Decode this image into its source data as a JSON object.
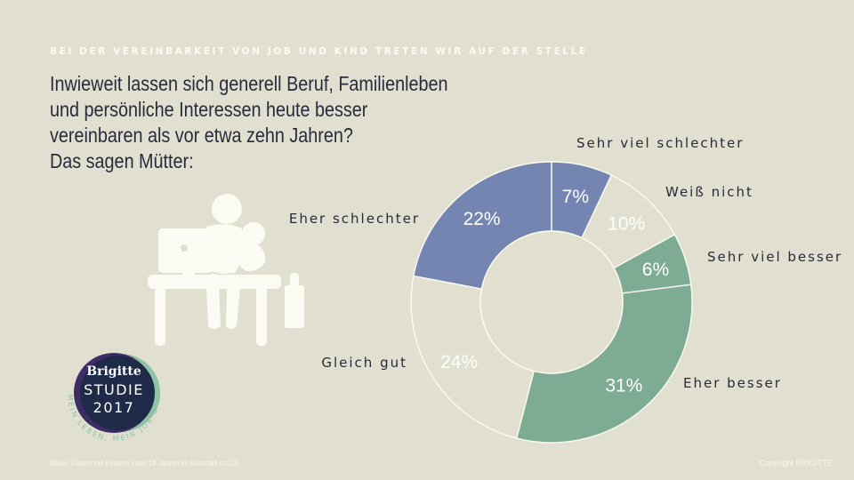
{
  "header": {
    "kicker": "BEI DER VEREINBARKEIT VON JOB UND KIND TRETEN WIR AUF DER STELLE",
    "question_lines": [
      "Inwieweit lassen sich generell Beruf, Familienleben",
      "und persönliche Interessen heute besser",
      "vereinbaren als vor etwa zehn Jahren?",
      "Das sagen Mütter:"
    ]
  },
  "illustration": {
    "icon": "mother-with-baby-at-desk-icon"
  },
  "logo": {
    "brand": "Brigitte",
    "line1": "STUDIE",
    "line2": "2017",
    "ring_text": "MEIN LEBEN, MEIN JOB & ICH"
  },
  "footer": {
    "basis": "Basis: Frauen mit Kindern unter 18 Jahren im Haushalt n=316",
    "copyright": "Copyright BRIGITTE"
  },
  "colors": {
    "background": "#e0dfd0",
    "negative": "#7585b2",
    "neutral": "#e0dfd0",
    "positive": "#7eab94",
    "separator": "#fbfbf0",
    "label_text": "#2a2a3c",
    "value_text": "#ffffff",
    "logo_navy": "#1f2a48",
    "logo_purple": "#3d2c66",
    "logo_mint": "#8fc2a6"
  },
  "chart_data": {
    "type": "pie",
    "variant": "donut",
    "title": "Inwieweit lassen sich generell Beruf, Familienleben und persönliche Interessen heute besser vereinbaren als vor etwa zehn Jahren? Das sagen Mütter:",
    "start": "12 o'clock",
    "direction": "clockwise",
    "unit": "%",
    "slices": [
      {
        "label": "Sehr viel schlechter",
        "value": 7,
        "display": "7%",
        "group": "negative"
      },
      {
        "label": "Weiß nicht",
        "value": 10,
        "display": "10%",
        "group": "neutral"
      },
      {
        "label": "Sehr viel besser",
        "value": 6,
        "display": "6%",
        "group": "positive"
      },
      {
        "label": "Eher besser",
        "value": 31,
        "display": "31%",
        "group": "positive"
      },
      {
        "label": "Gleich gut",
        "value": 24,
        "display": "24%",
        "group": "neutral"
      },
      {
        "label": "Eher schlechter",
        "value": 22,
        "display": "22%",
        "group": "negative"
      }
    ],
    "legend": "none (labels placed next to slices)"
  }
}
